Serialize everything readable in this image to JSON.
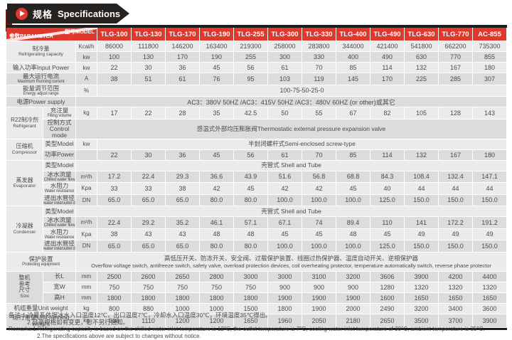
{
  "colors": {
    "accent_red": "#e0382d",
    "banner_black": "#262220",
    "fold_maroon": "#70140e",
    "bar_black": "#1d1d1b",
    "row_light": "#eaebec",
    "row_dark": "#dbdcde"
  },
  "banner": {
    "title_zh": "规格",
    "title_en": "Specifications",
    "icon": "play-icon"
  },
  "table": {
    "corner": {
      "param": "参数PARAMETER",
      "model": "型号MODEL"
    },
    "models": [
      "TLG-100",
      "TLG-130",
      "TLG-170",
      "TLG-190",
      "TLG-255",
      "TLG-300",
      "TLG-330",
      "TLG-400",
      "TLG-490",
      "TLG-630",
      "TLG-770",
      "AC-855"
    ],
    "rows": [
      {
        "group": {
          "lines": [
            "制冷量",
            "Refrigerating capacity"
          ],
          "rowspan": 2,
          "wide": true
        },
        "unit": "Kcal/h",
        "values": [
          "86000",
          "111800",
          "146200",
          "163400",
          "219300",
          "258000",
          "283800",
          "344000",
          "421400",
          "541800",
          "662200",
          "735300"
        ]
      },
      {
        "unit": "kw",
        "values": [
          "100",
          "130",
          "170",
          "190",
          "255",
          "300",
          "330",
          "400",
          "490",
          "630",
          "770",
          "855"
        ]
      },
      {
        "label": {
          "lines": [
            "输入功率Input Power"
          ],
          "wide": true
        },
        "unit": "kw",
        "values": [
          "22",
          "30",
          "36",
          "45",
          "56",
          "61",
          "70",
          "85",
          "114",
          "132",
          "167",
          "180"
        ]
      },
      {
        "label": {
          "lines": [
            "最大运行电流",
            "Maximum Running current"
          ],
          "wide": true
        },
        "unit": "A",
        "values": [
          "38",
          "51",
          "61",
          "76",
          "95",
          "103",
          "119",
          "145",
          "170",
          "225",
          "285",
          "307"
        ]
      },
      {
        "label": {
          "lines": [
            "能量调节范围",
            "Energy adjust range"
          ],
          "wide": true
        },
        "unit": "%",
        "span": {
          "lines": [
            "100-75-50-25-0"
          ],
          "cols": 12
        }
      },
      {
        "label": {
          "lines": [
            "电源Power supply"
          ],
          "wide": true
        },
        "span": {
          "lines": [
            "AC3：380V 50HZ /AC3：415V 50HZ /AC3：480V 60HZ  (or other)或其它"
          ],
          "cols": 13
        }
      },
      {
        "group": {
          "lines": [
            "R22制冷剂",
            "Refrigerant"
          ],
          "rowspan": 2
        },
        "label": {
          "lines": [
            "充注量",
            "Filling volume"
          ]
        },
        "unit": "kg",
        "values": [
          "17",
          "22",
          "28",
          "35",
          "42.5",
          "50",
          "55",
          "67",
          "82",
          "105",
          "128",
          "143"
        ]
      },
      {
        "label": {
          "lines": [
            "控制方式Control mode"
          ]
        },
        "span": {
          "lines": [
            "感温式外部均压膨胀阀Thermostatic external pressure expansion valve"
          ],
          "cols": 13,
          "zhSmall": true
        }
      },
      {
        "group": {
          "lines": [
            "压缩机",
            "Compressor"
          ],
          "rowspan": 2
        },
        "label": {
          "lines": [
            "类型Model"
          ]
        },
        "unit": "kw",
        "span": {
          "lines": [
            "半封闭螺杆式Semi-enclosed screw-type"
          ],
          "cols": 12,
          "zhSmall": true
        }
      },
      {
        "label": {
          "lines": [
            "功率Power"
          ]
        },
        "unit": "",
        "values": [
          "22",
          "30",
          "36",
          "45",
          "56",
          "61",
          "70",
          "85",
          "114",
          "132",
          "167",
          "180"
        ]
      },
      {
        "group": {
          "lines": [
            "蒸发器",
            "Evaporator"
          ],
          "rowspan": 4
        },
        "label": {
          "lines": [
            "类型Model"
          ]
        },
        "span": {
          "lines": [
            "壳管式 Shell and Tube"
          ],
          "cols": 13,
          "zhSmall": true
        }
      },
      {
        "label": {
          "lines": [
            "冰水流量",
            "Chilled water flow"
          ]
        },
        "unit": "m³/h",
        "values": [
          "17.2",
          "22.4",
          "29.3",
          "36.6",
          "43.9",
          "51.6",
          "56.8",
          "68.8",
          "84.3",
          "108.4",
          "132.4",
          "147.1"
        ]
      },
      {
        "label": {
          "lines": [
            "水阻力",
            "Water resistance"
          ]
        },
        "unit": "Kpa",
        "values": [
          "33",
          "33",
          "38",
          "42",
          "45",
          "42",
          "42",
          "45",
          "40",
          "44",
          "44",
          "44"
        ]
      },
      {
        "label": {
          "lines": [
            "进出水管径",
            "water inlet/outlet diameter"
          ]
        },
        "unit": "DN",
        "values": [
          "65.0",
          "65.0",
          "65.0",
          "80.0",
          "80.0",
          "100.0",
          "100.0",
          "100.0",
          "125.0",
          "150.0",
          "150.0",
          "150.0"
        ]
      },
      {
        "group": {
          "lines": [
            "冷凝器",
            "Condenser"
          ],
          "rowspan": 4
        },
        "label": {
          "lines": [
            "类型Model"
          ]
        },
        "span": {
          "lines": [
            "壳管式 Shell and Tube"
          ],
          "cols": 13,
          "zhSmall": true
        }
      },
      {
        "label": {
          "lines": [
            "冰水流量",
            "Chilled water flow"
          ]
        },
        "unit": "m³/h",
        "values": [
          "22.4",
          "29.2",
          "35.2",
          "46.1",
          "57.1",
          "67.1",
          "74",
          "89.4",
          "110",
          "141",
          "172.2",
          "191.2"
        ]
      },
      {
        "label": {
          "lines": [
            "水阻力",
            "Water resistance"
          ]
        },
        "unit": "Kpa",
        "values": [
          "38",
          "43",
          "43",
          "48",
          "48",
          "45",
          "45",
          "48",
          "45",
          "49",
          "49",
          "49"
        ]
      },
      {
        "label": {
          "lines": [
            "进出水管径",
            "water inlet/outlet diameter"
          ]
        },
        "unit": "DN",
        "values": [
          "65.0",
          "65.0",
          "65.0",
          "80.0",
          "80.0",
          "100.0",
          "100.0",
          "100.0",
          "125.0",
          "150.0",
          "150.0",
          "150.0"
        ]
      },
      {
        "tall": true,
        "label": {
          "lines": [
            "保护装置",
            "Protecting equipment"
          ],
          "wide": true
        },
        "span": {
          "lines": [
            "高低压开关、防冻开关、安全阀、过载保护装置、线圈过热保护器、温度自动开关、逆相保护器",
            "Overflow voltage switch, antifreeze switch, safety valve, overload protection devices, coil overheating protector, temperature automatically switch, reverse phase protector"
          ],
          "cols": 13,
          "zhSmall": true
        }
      },
      {
        "group": {
          "lines": [
            "整机",
            "参考",
            "尺寸",
            "Size"
          ],
          "rowspan": 3
        },
        "label": {
          "lines": [
            "长L"
          ]
        },
        "unit": "mm",
        "values": [
          "2500",
          "2600",
          "2650",
          "2800",
          "3000",
          "3000",
          "3100",
          "3200",
          "3606",
          "3900",
          "4200",
          "4400"
        ]
      },
      {
        "label": {
          "lines": [
            "宽W"
          ]
        },
        "unit": "mm",
        "values": [
          "750",
          "750",
          "750",
          "750",
          "750",
          "900",
          "900",
          "900",
          "1280",
          "1320",
          "1320",
          "1320"
        ]
      },
      {
        "label": {
          "lines": [
            "高H"
          ]
        },
        "unit": "mm",
        "values": [
          "1800",
          "1800",
          "1800",
          "1800",
          "1800",
          "1900",
          "1900",
          "1900",
          "1600",
          "1650",
          "1650",
          "1650"
        ]
      },
      {
        "label": {
          "lines": [
            "机组重量Unit weight"
          ],
          "wide": true
        },
        "unit": "kg",
        "values": [
          "800",
          "880",
          "1000",
          "1000",
          "1500",
          "1800",
          "1900",
          "2000",
          "2490",
          "3200",
          "3400",
          "3600"
        ]
      },
      {
        "label": {
          "lines": [
            "运行重量Unit running weight"
          ],
          "wide": true
        },
        "unit": "kg",
        "values": [
          "900",
          "1110",
          "1200",
          "1200",
          "1650",
          "1960",
          "2050",
          "2180",
          "2650",
          "3500",
          "3700",
          "3900"
        ]
      }
    ]
  },
  "footnotes": {
    "zh1": "备注:1.冷量系依据冰水入口温度12℃，出口温度7℃，冷却水入口温度30℃，环境温度35℃得出。",
    "zh2": "2.目录规格如有变更，恕不另行通知。",
    "en1": "Remarks:1.Refrigerating capacity is based on the chilled water inlet temperature is 12°C, the outlet temperature is 7°C, cooling water inlet temperature of 30°C, ambient temperature is 35°C.",
    "en2": "2.The specifications above are subject to changes without notice."
  }
}
